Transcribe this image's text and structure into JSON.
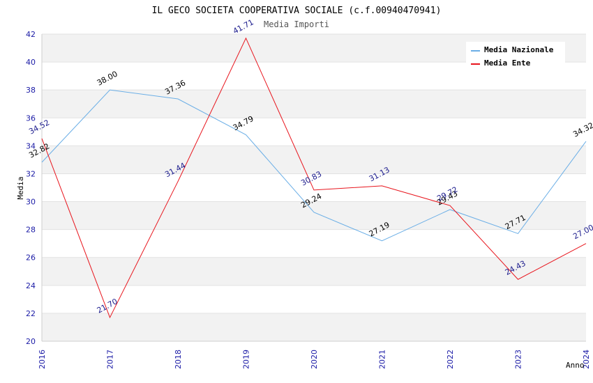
{
  "chart_data": {
    "type": "line",
    "title": "IL GECO SOCIETA COOPERATIVA SOCIALE (c.f.00940470941)",
    "subtitle": "Media Importi",
    "xlabel": "Anno",
    "ylabel": "Media",
    "x": [
      "2016",
      "2017",
      "2018",
      "2019",
      "2020",
      "2021",
      "2022",
      "2023",
      "2024"
    ],
    "ylim": [
      20,
      42
    ],
    "yticks": [
      20,
      22,
      24,
      26,
      28,
      30,
      32,
      34,
      36,
      38,
      40,
      42
    ],
    "grid": true,
    "legend_position": "top-right",
    "series": [
      {
        "name": "Media Nazionale",
        "color": "#6aaee6",
        "values": [
          32.82,
          38.0,
          37.36,
          34.79,
          29.24,
          27.19,
          29.43,
          27.71,
          34.32
        ],
        "labels": [
          "32.82",
          "38.00",
          "37.36",
          "34.79",
          "29.24",
          "27.19",
          "29.43",
          "27.71",
          "34.32"
        ]
      },
      {
        "name": "Media Ente",
        "color": "#e8141c",
        "values": [
          34.52,
          21.7,
          31.44,
          41.71,
          30.83,
          31.13,
          29.72,
          24.43,
          27.0
        ],
        "labels": [
          "34.52",
          "21.70",
          "31.44",
          "41.71",
          "30.83",
          "31.13",
          "29.72",
          "24.43",
          "27.00"
        ]
      }
    ]
  }
}
